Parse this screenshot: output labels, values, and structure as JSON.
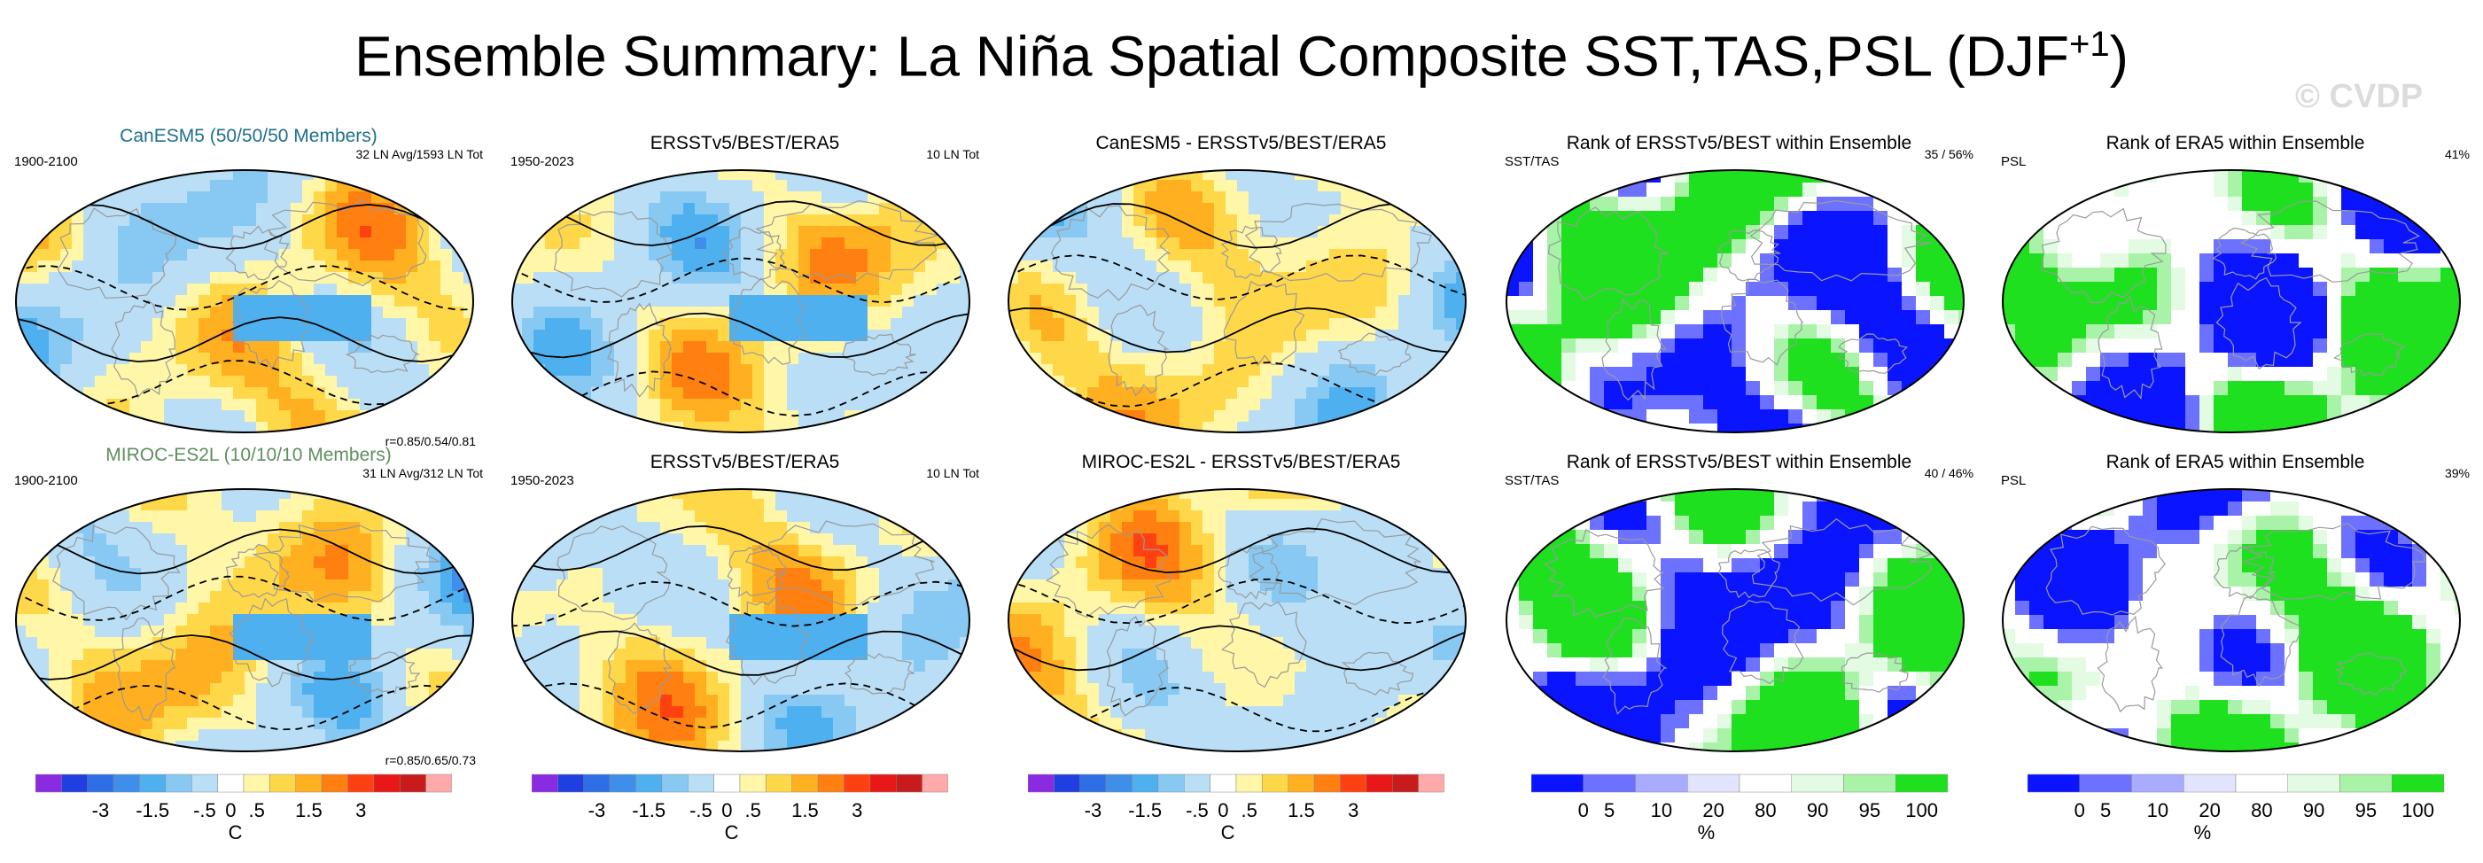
{
  "figure": {
    "title_main": "Ensemble Summary: La Niña Spatial Composite SST,TAS,PSL (DJF",
    "title_sup": "+1",
    "title_close": ")",
    "watermark": "© CVDP"
  },
  "chart_data": {
    "type": "heatmap",
    "description_layout": "2 rows x 5 columns of global map panels",
    "rows": [
      {
        "model_label": "CanESM5 (50/50/50 Members)",
        "model_color": "#1f6f8b",
        "panels": [
          {
            "title": "",
            "left_label": "1900-2100",
            "right_label": "32 LN Avg/1593 LN Tot",
            "corr_label": "r=0.85/0.54/0.81",
            "kind": "anomaly",
            "seed": 3
          },
          {
            "title": "ERSSTv5/BEST/ERA5",
            "left_label": "1950-2023",
            "right_label": "10 LN Tot",
            "corr_label": "",
            "kind": "anomaly",
            "seed": 11
          },
          {
            "title": "CanESM5 - ERSSTv5/BEST/ERA5",
            "left_label": "",
            "right_label": "",
            "corr_label": "",
            "kind": "difference",
            "seed": 21
          },
          {
            "title": "Rank of ERSSTv5/BEST within Ensemble",
            "left_label": "SST/TAS",
            "right_label": "35 /  56%",
            "corr_label": "",
            "kind": "rank",
            "seed": 31
          },
          {
            "title": "Rank of ERA5 within Ensemble",
            "left_label": "PSL",
            "right_label": "41%",
            "corr_label": "",
            "kind": "rank",
            "seed": 41
          }
        ]
      },
      {
        "model_label": "MIROC-ES2L (10/10/10 Members)",
        "model_color": "#5e8f5e",
        "panels": [
          {
            "title": "",
            "left_label": "1900-2100",
            "right_label": "31 LN Avg/312 LN Tot",
            "corr_label": "r=0.85/0.65/0.73",
            "kind": "anomaly",
            "seed": 5
          },
          {
            "title": "ERSSTv5/BEST/ERA5",
            "left_label": "1950-2023",
            "right_label": "10 LN Tot",
            "corr_label": "",
            "kind": "anomaly",
            "seed": 13
          },
          {
            "title": "MIROC-ES2L - ERSSTv5/BEST/ERA5",
            "left_label": "",
            "right_label": "",
            "corr_label": "",
            "kind": "difference",
            "seed": 23
          },
          {
            "title": "Rank of ERSSTv5/BEST within Ensemble",
            "left_label": "SST/TAS",
            "right_label": "40 /  46%",
            "corr_label": "",
            "kind": "rank",
            "seed": 33
          },
          {
            "title": "Rank of ERA5 within Ensemble",
            "left_label": "PSL",
            "right_label": "39%",
            "corr_label": "",
            "kind": "rank",
            "seed": 43
          }
        ]
      }
    ],
    "colorbars": [
      {
        "kind": "anomaly",
        "unit": "C",
        "ticks": [
          "-3",
          "-1.5",
          "-.5",
          "0",
          ".5",
          "1.5",
          "3"
        ]
      },
      {
        "kind": "anomaly",
        "unit": "C",
        "ticks": [
          "-3",
          "-1.5",
          "-.5",
          "0",
          ".5",
          "1.5",
          "3"
        ]
      },
      {
        "kind": "anomaly",
        "unit": "C",
        "ticks": [
          "-3",
          "-1.5",
          "-.5",
          "0",
          ".5",
          "1.5",
          "3"
        ]
      },
      {
        "kind": "rank",
        "unit": "%",
        "ticks": [
          "0",
          "5",
          "10",
          "20",
          "80",
          "90",
          "95",
          "100"
        ]
      },
      {
        "kind": "rank",
        "unit": "%",
        "ticks": [
          "0",
          "5",
          "10",
          "20",
          "80",
          "90",
          "95",
          "100"
        ]
      }
    ],
    "anomaly_colors": [
      "#8a2be2",
      "#1f3fe0",
      "#2f6fe6",
      "#3f8fea",
      "#4fb0ef",
      "#87c9f2",
      "#b9def6",
      "#ffffff",
      "#fff6a8",
      "#ffd84a",
      "#ffb020",
      "#ff8010",
      "#ff4010",
      "#e81818",
      "#c81c1c",
      "#ffaaaa"
    ],
    "rank_colors": [
      "#0a14ff",
      "#6c72ff",
      "#a8abff",
      "#e2e4ff",
      "#ffffff",
      "#e2fbe2",
      "#a8f3a8",
      "#1fe01f"
    ]
  }
}
